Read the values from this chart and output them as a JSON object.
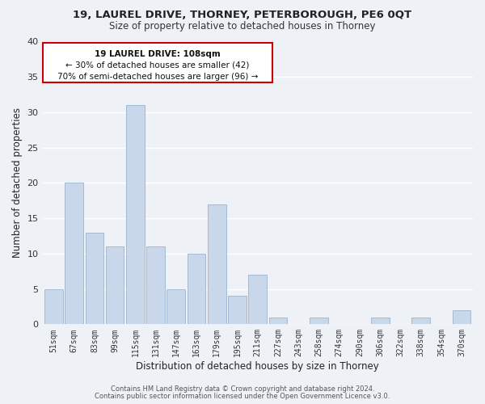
{
  "title_line1": "19, LAUREL DRIVE, THORNEY, PETERBOROUGH, PE6 0QT",
  "title_line2": "Size of property relative to detached houses in Thorney",
  "xlabel": "Distribution of detached houses by size in Thorney",
  "ylabel": "Number of detached properties",
  "bar_color": "#c8d8ea",
  "bar_edge_color": "#9ab4cc",
  "categories": [
    "51sqm",
    "67sqm",
    "83sqm",
    "99sqm",
    "115sqm",
    "131sqm",
    "147sqm",
    "163sqm",
    "179sqm",
    "195sqm",
    "211sqm",
    "227sqm",
    "243sqm",
    "258sqm",
    "274sqm",
    "290sqm",
    "306sqm",
    "322sqm",
    "338sqm",
    "354sqm",
    "370sqm"
  ],
  "values": [
    5,
    20,
    13,
    11,
    31,
    11,
    5,
    10,
    17,
    4,
    7,
    1,
    0,
    1,
    0,
    0,
    1,
    0,
    1,
    0,
    2
  ],
  "ylim": [
    0,
    40
  ],
  "yticks": [
    0,
    5,
    10,
    15,
    20,
    25,
    30,
    35,
    40
  ],
  "annotation_title": "19 LAUREL DRIVE: 108sqm",
  "annotation_line2": "← 30% of detached houses are smaller (42)",
  "annotation_line3": "70% of semi-detached houses are larger (96) →",
  "annotation_box_edge": "#cc0000",
  "annotation_box_face": "#ffffff",
  "footer_line1": "Contains HM Land Registry data © Crown copyright and database right 2024.",
  "footer_line2": "Contains public sector information licensed under the Open Government Licence v3.0.",
  "background_color": "#eef2f7",
  "grid_color": "#ffffff"
}
